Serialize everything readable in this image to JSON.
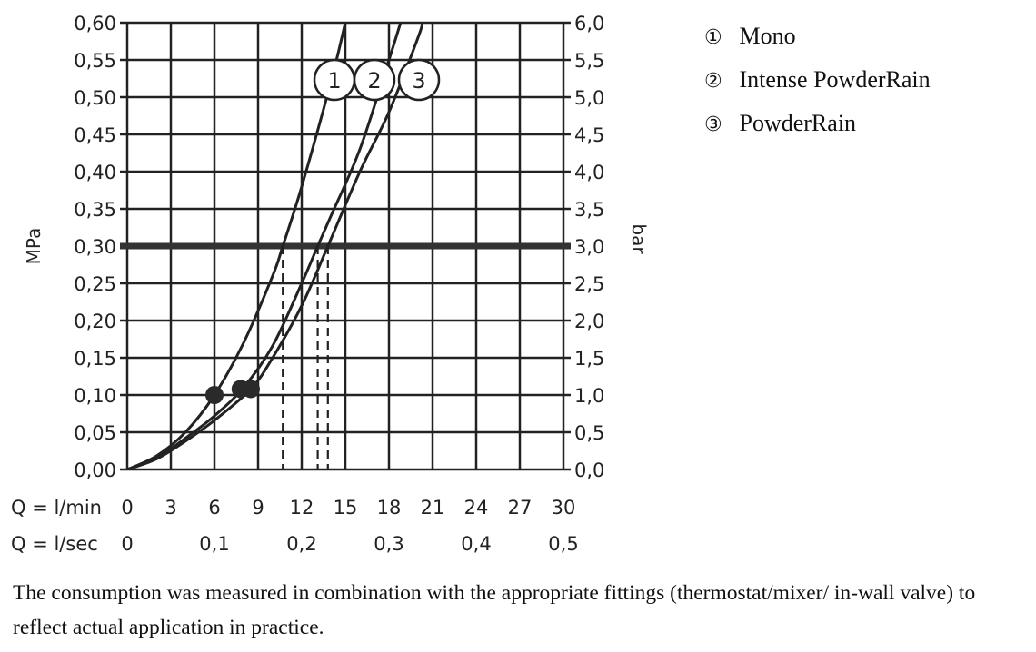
{
  "chart_data": {
    "type": "line",
    "xlabels": [
      {
        "label": "Q = l/min",
        "ticks": [
          "0",
          "3",
          "6",
          "9",
          "12",
          "15",
          "18",
          "21",
          "24",
          "27",
          "30"
        ]
      },
      {
        "label": "Q = l/sec",
        "ticks": [
          "0",
          "0,1",
          "0,2",
          "0,3",
          "0,4",
          "0,5"
        ]
      }
    ],
    "ylabel": "MPa",
    "y2label": "bar",
    "xlim": [
      0,
      30
    ],
    "ylim": [
      0,
      0.6
    ],
    "y_ticks": [
      "0,00",
      "0,05",
      "0,10",
      "0,15",
      "0,20",
      "0,25",
      "0,30",
      "0,35",
      "0,40",
      "0,45",
      "0,50",
      "0,55",
      "0,60"
    ],
    "y2_ticks": [
      "0,0",
      "0,5",
      "1,0",
      "1,5",
      "2,0",
      "2,5",
      "3,0",
      "3,5",
      "4,0",
      "4,5",
      "5,0",
      "5,5",
      "6,0"
    ],
    "grid": true,
    "reference_line": {
      "y": 0.3
    },
    "series": [
      {
        "name": "Mono",
        "marker": "1",
        "x": [
          0,
          2,
          4,
          6,
          8,
          10,
          10.7,
          12,
          14,
          15
        ],
        "y": [
          0,
          0.018,
          0.05,
          0.1,
          0.17,
          0.26,
          0.3,
          0.38,
          0.52,
          0.6
        ],
        "point": {
          "x": 6,
          "y": 0.1
        },
        "at_reference_x": 10.7
      },
      {
        "name": "Intense PowderRain",
        "marker": "2",
        "x": [
          0,
          2,
          4,
          6,
          8,
          10,
          12,
          13.1,
          14,
          16,
          18,
          18.8
        ],
        "y": [
          0,
          0.015,
          0.042,
          0.072,
          0.11,
          0.166,
          0.25,
          0.3,
          0.34,
          0.43,
          0.55,
          0.6
        ],
        "point": {
          "x": 7.8,
          "y": 0.108
        },
        "at_reference_x": 13.1
      },
      {
        "name": "PowderRain",
        "marker": "3",
        "x": [
          0,
          2,
          4,
          6,
          8.5,
          10,
          12,
          13.8,
          16,
          18,
          20,
          20.3
        ],
        "y": [
          0,
          0.014,
          0.038,
          0.066,
          0.108,
          0.15,
          0.22,
          0.3,
          0.4,
          0.48,
          0.58,
          0.6
        ],
        "point": {
          "x": 8.5,
          "y": 0.108
        },
        "at_reference_x": 13.8
      }
    ],
    "legend_position": "top-right"
  },
  "legend": [
    {
      "marker": "①",
      "label": "Mono"
    },
    {
      "marker": "②",
      "label": "Intense PowderRain"
    },
    {
      "marker": "③",
      "label": "PowderRain"
    }
  ],
  "caption": "The consumption was measured in combination with the appropriate fittings (thermostat/mixer/ in-wall valve) to reflect actual application in practice."
}
